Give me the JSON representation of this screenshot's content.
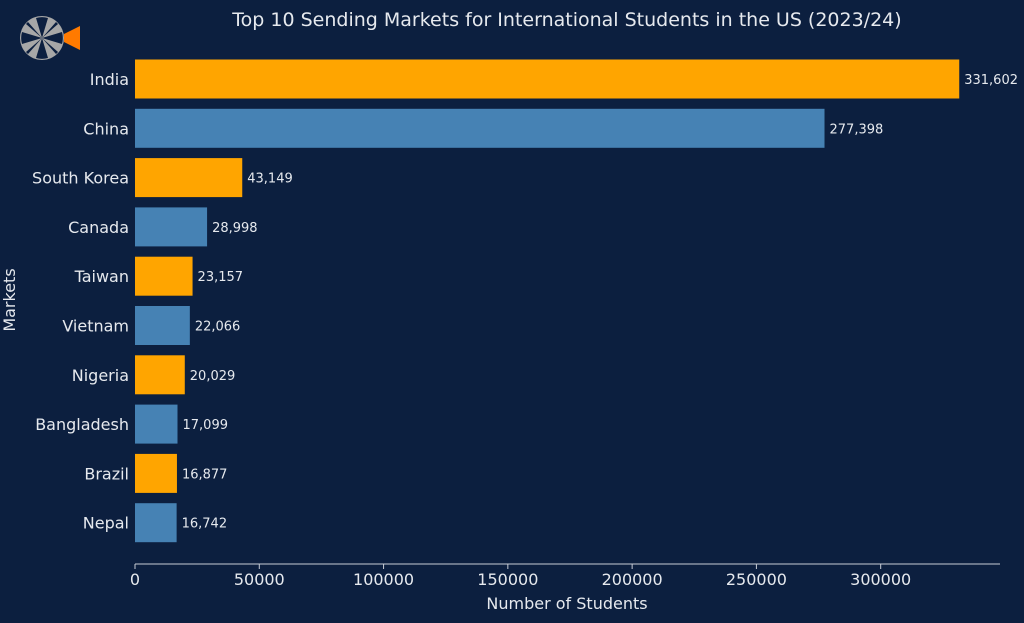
{
  "logo": {
    "icon": "compass-logo-icon"
  },
  "colors": {
    "background": "#0c1f3f",
    "bar_orange": "#ffa500",
    "bar_blue": "#4682b4",
    "text": "#e6e9ee"
  },
  "chart_data": {
    "type": "bar",
    "orientation": "horizontal",
    "title": "Top 10 Sending Markets for International Students in the US (2023/24)",
    "xlabel": "Number of Students",
    "ylabel": "Markets",
    "categories": [
      "India",
      "China",
      "South Korea",
      "Canada",
      "Taiwan",
      "Vietnam",
      "Nigeria",
      "Bangladesh",
      "Brazil",
      "Nepal"
    ],
    "values": [
      331602,
      277398,
      43149,
      28998,
      23157,
      22066,
      20029,
      17099,
      16877,
      16742
    ],
    "value_labels": [
      "331,602",
      "277,398",
      "43,149",
      "28,998",
      "23,157",
      "22,066",
      "20,029",
      "17,099",
      "16,877",
      "16,742"
    ],
    "bar_colors": [
      "#ffa500",
      "#4682b4",
      "#ffa500",
      "#4682b4",
      "#ffa500",
      "#4682b4",
      "#ffa500",
      "#4682b4",
      "#ffa500",
      "#4682b4"
    ],
    "xticks": [
      0,
      50000,
      100000,
      150000,
      200000,
      250000,
      300000
    ],
    "xlim": [
      0,
      348000
    ],
    "grid": false,
    "legend": "none"
  }
}
